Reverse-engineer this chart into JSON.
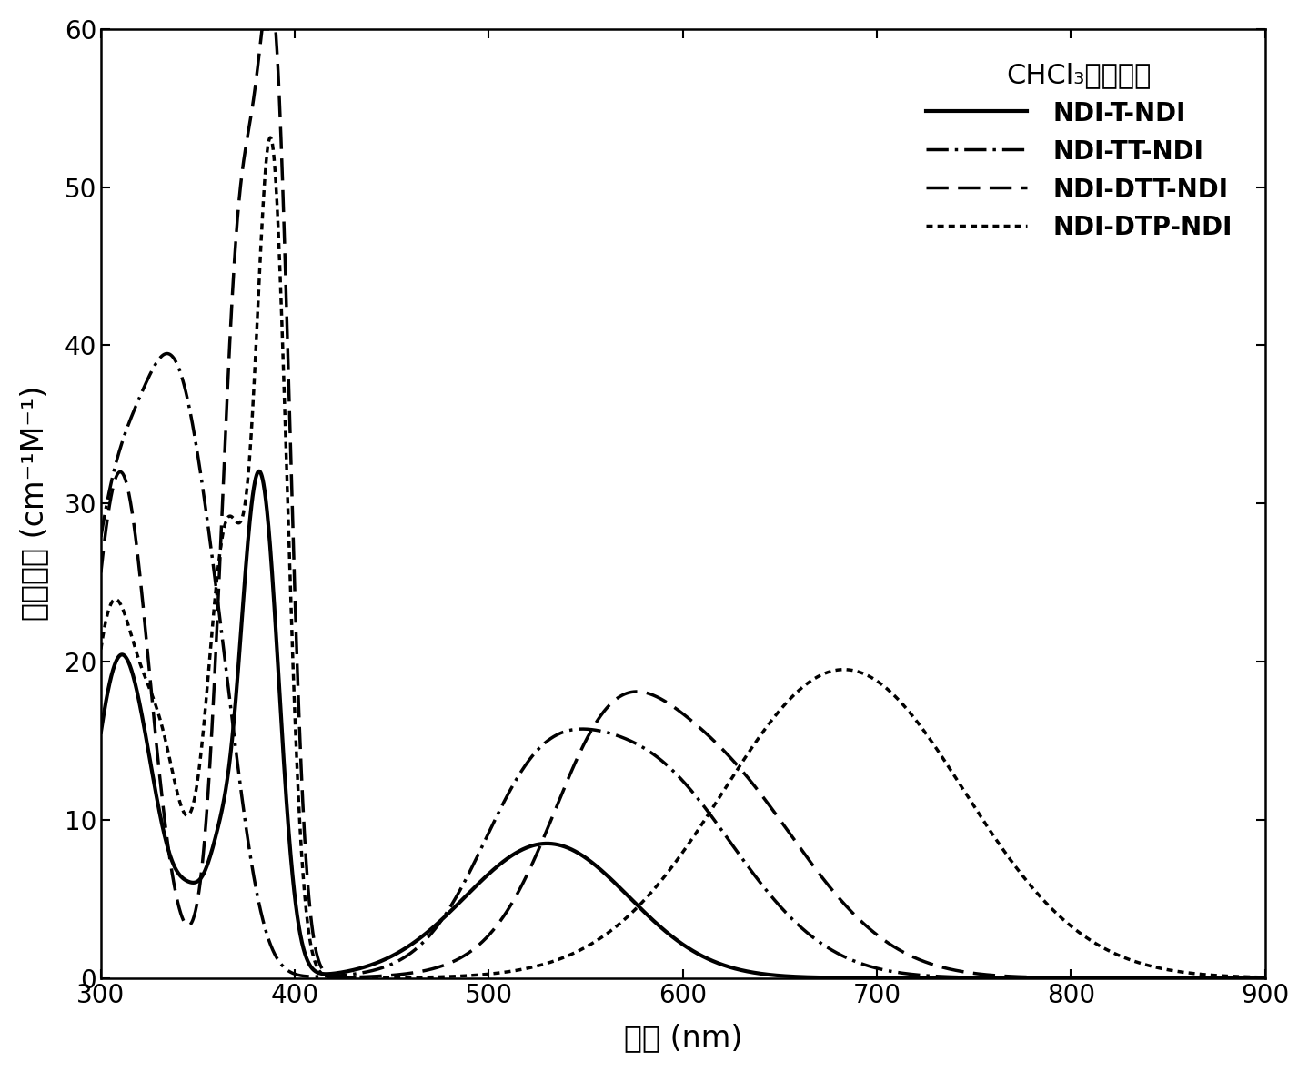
{
  "xlim": [
    300,
    900
  ],
  "ylim": [
    0,
    60
  ],
  "xticks": [
    300,
    400,
    500,
    600,
    700,
    800,
    900
  ],
  "yticks": [
    0,
    10,
    20,
    30,
    40,
    50,
    60
  ],
  "legend_labels": [
    "NDI-T-NDI",
    "NDI-TT-NDI",
    "NDI-DTT-NDI",
    "NDI-DTP-NDI"
  ],
  "legend_title": "CHCl₃中的溶液",
  "xlabel": "波长 (nm)",
  "ylabel": "消光系数 (cm⁻¹M⁻¹)",
  "line_color": "#000000",
  "background_color": "#ffffff",
  "line_width": 2.5
}
